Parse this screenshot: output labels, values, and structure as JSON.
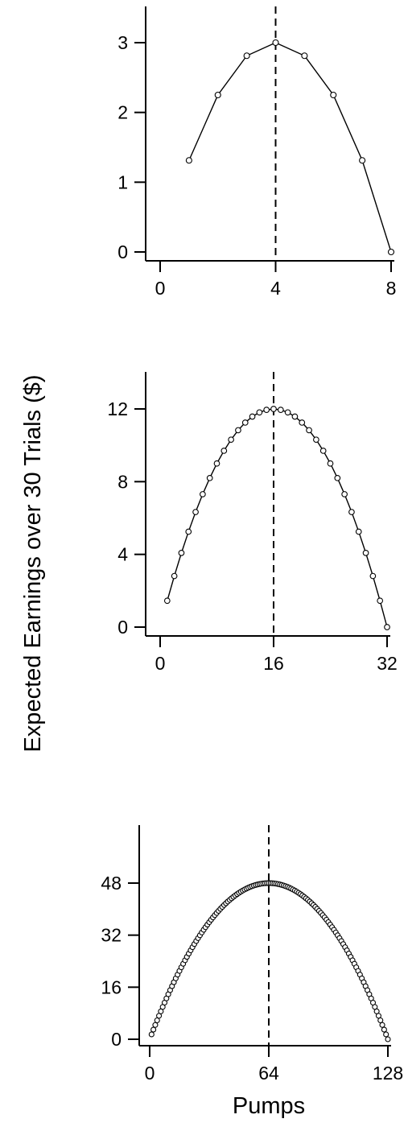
{
  "figure": {
    "ylabel": "Expected Earnings over 30 Trials ($)",
    "xlabel": "Pumps"
  },
  "chart_data": [
    {
      "type": "scatter",
      "connected": true,
      "xlim": [
        0,
        8
      ],
      "ylim": [
        0,
        3
      ],
      "x_ticks": [
        0,
        4,
        8
      ],
      "y_ticks": [
        0,
        1,
        2,
        3
      ],
      "optimum_x": 4,
      "x": [
        1,
        2,
        3,
        4,
        5,
        6,
        7,
        8
      ],
      "y": [
        1.3125,
        2.25,
        2.8125,
        3.0,
        2.8125,
        2.25,
        1.3125,
        0.0
      ]
    },
    {
      "type": "scatter",
      "connected": true,
      "xlim": [
        0,
        32
      ],
      "ylim": [
        0,
        12
      ],
      "x_ticks": [
        0,
        16,
        32
      ],
      "y_ticks": [
        0,
        4,
        8,
        12
      ],
      "optimum_x": 16,
      "x": [
        1,
        2,
        3,
        4,
        5,
        6,
        7,
        8,
        9,
        10,
        11,
        12,
        13,
        14,
        15,
        16,
        17,
        18,
        19,
        20,
        21,
        22,
        23,
        24,
        25,
        26,
        27,
        28,
        29,
        30,
        31,
        32
      ],
      "y": [
        1.45,
        2.81,
        4.08,
        5.25,
        6.33,
        7.31,
        8.2,
        9.0,
        9.7,
        10.31,
        10.83,
        11.25,
        11.58,
        11.81,
        11.95,
        12.0,
        11.95,
        11.81,
        11.58,
        11.25,
        10.83,
        10.31,
        9.7,
        9.0,
        8.2,
        7.31,
        6.33,
        5.25,
        4.08,
        2.81,
        1.45,
        0.0
      ]
    },
    {
      "type": "scatter",
      "connected": false,
      "xlim": [
        0,
        128
      ],
      "ylim": [
        0,
        48
      ],
      "x_ticks": [
        0,
        64,
        128
      ],
      "y_ticks": [
        0,
        16,
        32,
        48
      ],
      "optimum_x": 64,
      "point_count": 128,
      "y_formula": "0.0117*x*(128-x)",
      "x_range": [
        1,
        128
      ],
      "y_peak": 48
    }
  ]
}
